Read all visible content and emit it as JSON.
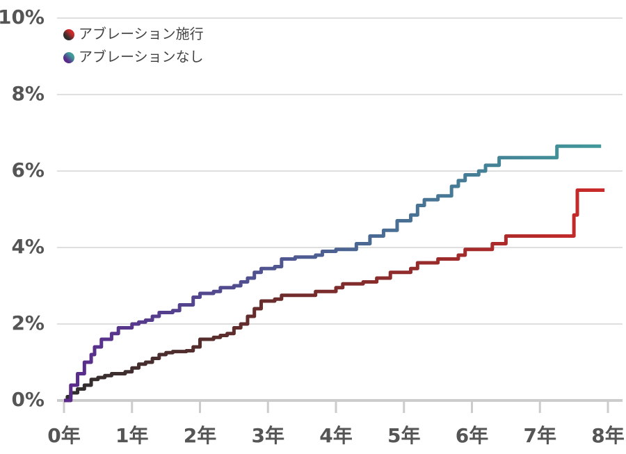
{
  "chart_data": {
    "type": "step",
    "series": [
      {
        "name": "アブレーション施行",
        "colors": [
          "#2e2e2e",
          "#cc2a2a"
        ],
        "x": [
          0,
          0.05,
          0.1,
          0.2,
          0.3,
          0.4,
          0.5,
          0.6,
          0.7,
          0.9,
          1.0,
          1.1,
          1.2,
          1.3,
          1.4,
          1.5,
          1.6,
          1.8,
          1.9,
          2.0,
          2.2,
          2.3,
          2.4,
          2.5,
          2.6,
          2.7,
          2.8,
          2.9,
          3.1,
          3.2,
          3.7,
          4.0,
          4.1,
          4.4,
          4.6,
          4.8,
          5.1,
          5.2,
          5.5,
          5.8,
          5.9,
          6.3,
          6.5,
          7.5,
          7.55,
          7.95
        ],
        "values": [
          0,
          0.1,
          0.2,
          0.3,
          0.4,
          0.55,
          0.6,
          0.65,
          0.7,
          0.75,
          0.85,
          0.95,
          1.0,
          1.1,
          1.2,
          1.25,
          1.28,
          1.3,
          1.4,
          1.6,
          1.65,
          1.7,
          1.75,
          1.9,
          2.0,
          2.2,
          2.4,
          2.6,
          2.65,
          2.75,
          2.85,
          2.95,
          3.05,
          3.1,
          3.2,
          3.35,
          3.45,
          3.6,
          3.7,
          3.8,
          3.95,
          4.1,
          4.3,
          4.85,
          5.5,
          5.5
        ]
      },
      {
        "name": "アブレーションなし",
        "colors": [
          "#5a2a8a",
          "#3f9a9a"
        ],
        "x": [
          0,
          0.1,
          0.2,
          0.3,
          0.4,
          0.45,
          0.55,
          0.7,
          0.8,
          1.0,
          1.1,
          1.2,
          1.3,
          1.4,
          1.6,
          1.7,
          1.9,
          2.0,
          2.2,
          2.3,
          2.5,
          2.6,
          2.7,
          2.8,
          2.9,
          3.1,
          3.2,
          3.4,
          3.7,
          3.8,
          4.0,
          4.3,
          4.5,
          4.7,
          4.9,
          5.1,
          5.2,
          5.3,
          5.5,
          5.7,
          5.8,
          5.9,
          6.1,
          6.2,
          6.4,
          7.25,
          7.9
        ],
        "values": [
          0,
          0.4,
          0.7,
          1.0,
          1.2,
          1.4,
          1.6,
          1.75,
          1.9,
          2.0,
          2.05,
          2.1,
          2.2,
          2.3,
          2.35,
          2.5,
          2.7,
          2.8,
          2.85,
          2.95,
          3.0,
          3.1,
          3.2,
          3.35,
          3.45,
          3.5,
          3.7,
          3.75,
          3.8,
          3.9,
          3.95,
          4.1,
          4.3,
          4.45,
          4.7,
          4.85,
          5.1,
          5.25,
          5.35,
          5.6,
          5.75,
          5.9,
          6.0,
          6.15,
          6.35,
          6.65,
          6.65
        ]
      }
    ],
    "xlim": [
      0,
      8
    ],
    "xticks": [
      {
        "value": 0,
        "label": "0年"
      },
      {
        "value": 1,
        "label": "1年"
      },
      {
        "value": 2,
        "label": "2年"
      },
      {
        "value": 3,
        "label": "3年"
      },
      {
        "value": 4,
        "label": "4年"
      },
      {
        "value": 5,
        "label": "5年"
      },
      {
        "value": 6,
        "label": "6年"
      },
      {
        "value": 7,
        "label": "7年"
      },
      {
        "value": 8,
        "label": "8年"
      }
    ],
    "ylim": [
      0,
      10
    ],
    "yticks": [
      {
        "value": 0,
        "label": "0%"
      },
      {
        "value": 2,
        "label": "2%"
      },
      {
        "value": 4,
        "label": "4%"
      },
      {
        "value": 6,
        "label": "6%"
      },
      {
        "value": 8,
        "label": "8%"
      },
      {
        "value": 10,
        "label": "10%"
      }
    ],
    "grid": true,
    "legend": "upper left"
  }
}
